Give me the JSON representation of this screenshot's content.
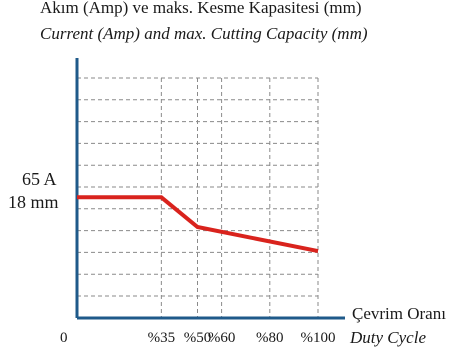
{
  "chart_data": {
    "type": "line",
    "title": "Akım (Amp) ve maks. Kesme Kapasitesi (mm)",
    "subtitle": "Current (Amp) and max. Cutting Capacity (mm)",
    "xlabel": "Çevrim Oranı",
    "xlabel_en": "Duty Cycle",
    "origin_label": "0",
    "x_ticks": [
      "%35",
      "%50",
      "%60",
      "%80",
      "%100"
    ],
    "x_tick_values": [
      35,
      50,
      60,
      80,
      100
    ],
    "y_labels": [
      "65 A",
      "18 mm"
    ],
    "grid": true,
    "colors": {
      "axis": "#1f5a8a",
      "line": "#d9231d",
      "grid": "#8a8a8a"
    },
    "series": [
      {
        "x": [
          0,
          35,
          50,
          100
        ],
        "y": [
          65,
          65,
          49,
          36
        ]
      }
    ],
    "ylim": [
      0,
      140
    ]
  }
}
